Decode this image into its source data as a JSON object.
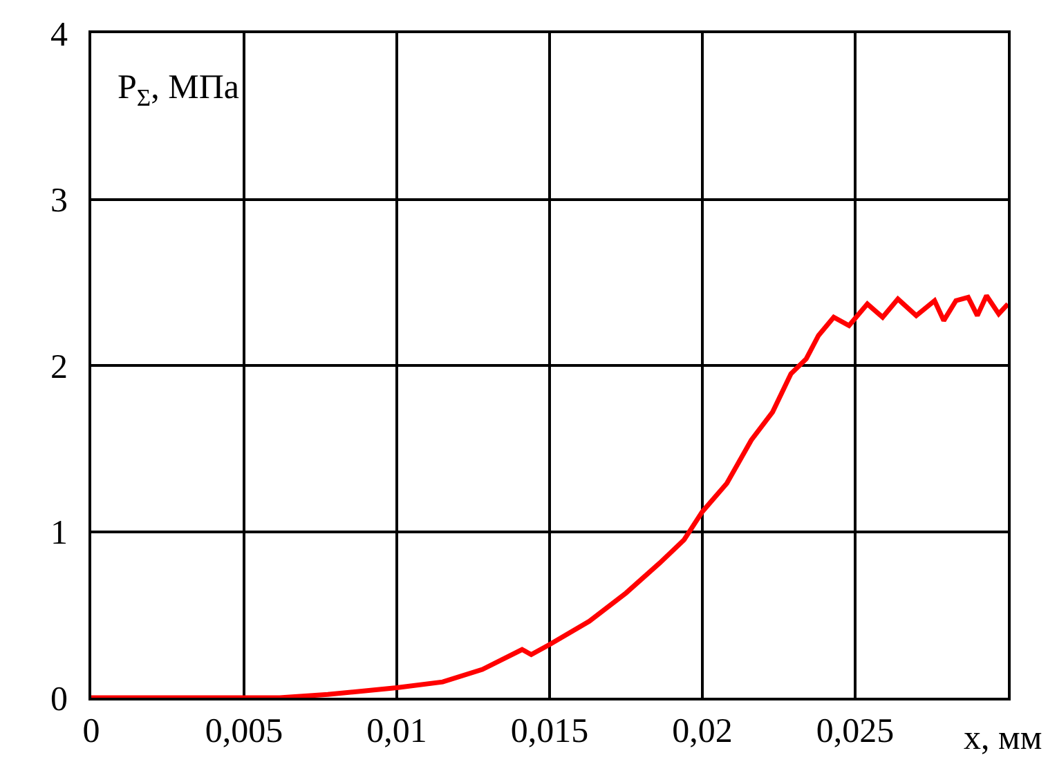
{
  "chart_data": {
    "type": "line",
    "xlabel": "x, мм",
    "ylabel": "P$_{Σ}$, МПа",
    "x": [
      0,
      0.005,
      0.00617,
      0.00774,
      0.01,
      0.0115,
      0.0128,
      0.0141,
      0.0144,
      0.015,
      0.0163,
      0.0175,
      0.0186,
      0.0194,
      0.02,
      0.0208,
      0.0216,
      0.0223,
      0.0229,
      0.0234,
      0.0238,
      0.0243,
      0.0248,
      0.0254,
      0.0259,
      0.0264,
      0.027,
      0.0276,
      0.0279,
      0.0283,
      0.0287,
      0.029,
      0.0293,
      0.0297,
      0.03
    ],
    "series": [
      {
        "color": "#ff0000",
        "values": [
          0,
          0,
          0,
          0.02,
          0.06,
          0.095,
          0.17,
          0.29,
          0.26,
          0.32,
          0.46,
          0.63,
          0.81,
          0.95,
          1.12,
          1.29,
          1.55,
          1.72,
          1.95,
          2.04,
          2.18,
          2.29,
          2.24,
          2.37,
          2.29,
          2.4,
          2.3,
          2.39,
          2.27,
          2.39,
          2.41,
          2.3,
          2.42,
          2.31,
          2.37
        ]
      }
    ],
    "xlim": [
      0,
      0.03
    ],
    "ylim": [
      0,
      4
    ],
    "xticks": [
      0,
      {
        "value": 0.005,
        "label": "0,005"
      },
      {
        "value": 0.01,
        "label": "0,01"
      },
      {
        "value": 0.015,
        "label": "0,015"
      },
      {
        "value": 0.02,
        "label": "0,02"
      },
      {
        "value": 0.025,
        "label": "0,025"
      },
      {
        "value": 0.03,
        "label": null
      }
    ],
    "yticks": [
      0,
      1,
      2,
      3,
      4
    ],
    "grid": true,
    "marker": "none",
    "line_style": "solid"
  }
}
